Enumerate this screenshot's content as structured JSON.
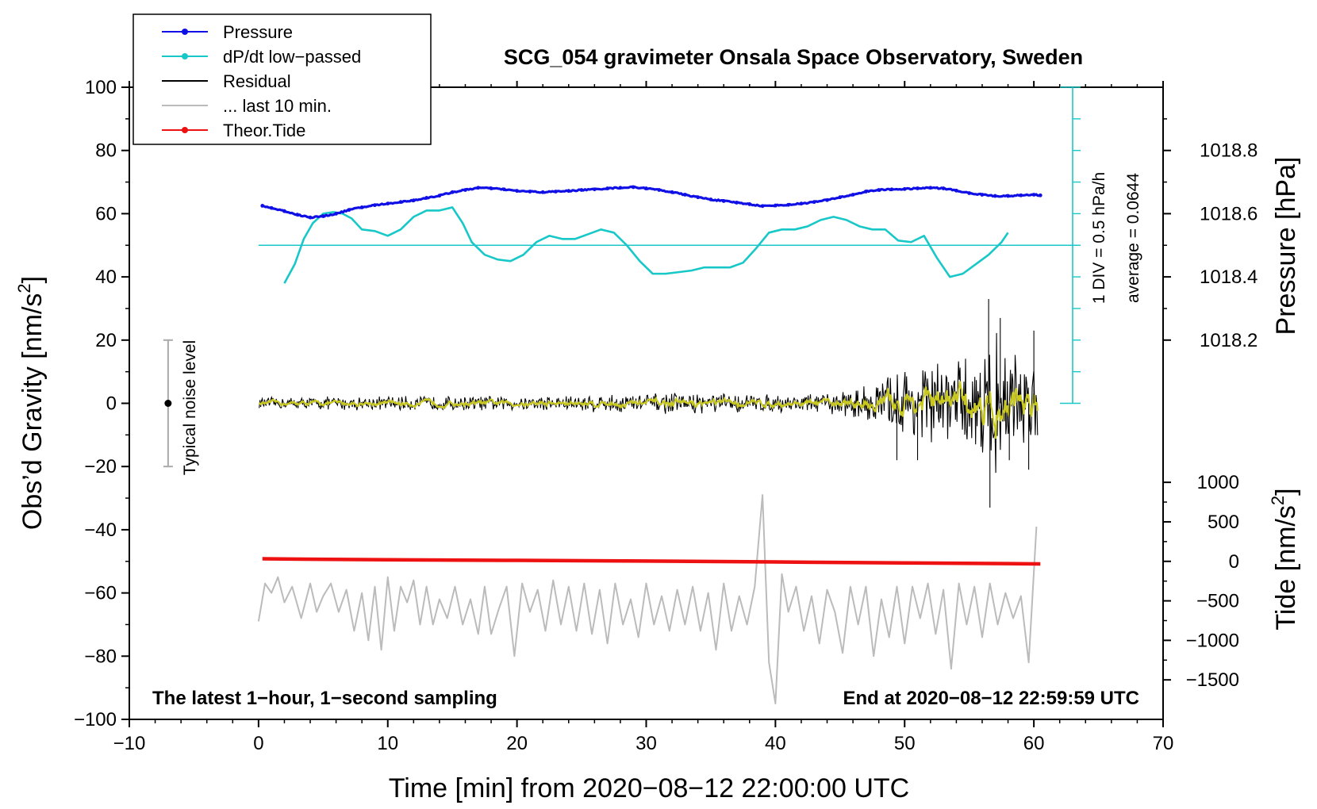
{
  "chart_data": {
    "type": "line",
    "title": "SCG_054 gravimeter Onsala Space Observatory, Sweden",
    "xlabel": "Time [min] from 2020−08−12 22:00:00 UTC",
    "ylabel_main": "Obs’d Gravity [nm/s",
    "ylabel_sup": "2",
    "ylabel_close": "]",
    "ylabel_pressure": "Pressure [hPa]",
    "ylabel_tide": "Tide [nm/s",
    "ylabel_tide_sup": "2",
    "ylabel_tide_close": "]",
    "xlim": [
      -10,
      70
    ],
    "ylim": [
      -100,
      100
    ],
    "x_ticks": [
      "−10",
      "0",
      "10",
      "20",
      "30",
      "40",
      "50",
      "60",
      "70"
    ],
    "y_ticks": [
      "−100",
      "−80",
      "−60",
      "−40",
      "−20",
      "0",
      "20",
      "40",
      "60",
      "80",
      "100"
    ],
    "pressure_axis": {
      "ticks": [
        1018.2,
        1018.4,
        1018.6,
        1018.8
      ],
      "tick_labels": [
        "1018.2",
        "1018.4",
        "1018.6",
        "1018.8"
      ],
      "y_at_1018_2": 20,
      "hpa_per_20": 0.2
    },
    "tide_axis": {
      "ticks": [
        -1500,
        -1000,
        -500,
        0,
        500,
        1000
      ],
      "tick_labels": [
        "−1500",
        "−1000",
        "−500",
        "0",
        "500",
        "1000"
      ],
      "y_at_tide_0": -50,
      "tide_per_y_unit": 40
    },
    "legend": {
      "position": "top-left",
      "entries": [
        {
          "label": "Pressure",
          "color": "#1010e6",
          "marker": true
        },
        {
          "label": "dP/dt low−passed",
          "color": "#18c8c8",
          "marker": true
        },
        {
          "label": "Residual",
          "color": "#000000",
          "marker": false
        },
        {
          "label": "... last 10 min.",
          "color": "#bbbbbb",
          "marker": false
        },
        {
          "label": "Theor.Tide",
          "color": "#ee1111",
          "marker": true
        }
      ]
    },
    "annotations": {
      "left_bottom": "The latest 1−hour, 1−second sampling",
      "right_bottom": "End at 2020−08−12 22:59:59 UTC",
      "noise_label": "Typical noise level",
      "div_label": "1 DIV = 0.5 hPa/h",
      "average_label": "average = 0.0644"
    },
    "noise_bar": {
      "x": -7,
      "center": 0,
      "low": -20,
      "high": 20
    },
    "dpdt_scale_bar": {
      "x": 63,
      "y_low": 0,
      "y_high": 100,
      "divisions": 10,
      "baseline_y": 50
    },
    "series": [
      {
        "name": "Pressure",
        "unit": "hPa",
        "color": "#1010e6",
        "points": [
          [
            0.3,
            1018.625
          ],
          [
            1,
            1018.618
          ],
          [
            2,
            1018.608
          ],
          [
            3,
            1018.597
          ],
          [
            4,
            1018.588
          ],
          [
            5,
            1018.592
          ],
          [
            6,
            1018.6
          ],
          [
            7,
            1018.612
          ],
          [
            8,
            1018.62
          ],
          [
            9,
            1018.627
          ],
          [
            10,
            1018.632
          ],
          [
            11,
            1018.637
          ],
          [
            12,
            1018.642
          ],
          [
            13,
            1018.65
          ],
          [
            14,
            1018.657
          ],
          [
            15,
            1018.668
          ],
          [
            16,
            1018.675
          ],
          [
            17,
            1018.682
          ],
          [
            18,
            1018.68
          ],
          [
            19,
            1018.677
          ],
          [
            20,
            1018.672
          ],
          [
            21,
            1018.67
          ],
          [
            22,
            1018.668
          ],
          [
            23,
            1018.67
          ],
          [
            24,
            1018.672
          ],
          [
            25,
            1018.675
          ],
          [
            26,
            1018.677
          ],
          [
            27,
            1018.68
          ],
          [
            28,
            1018.682
          ],
          [
            29,
            1018.684
          ],
          [
            30,
            1018.68
          ],
          [
            31,
            1018.675
          ],
          [
            32,
            1018.668
          ],
          [
            33,
            1018.66
          ],
          [
            34,
            1018.652
          ],
          [
            35,
            1018.645
          ],
          [
            36,
            1018.64
          ],
          [
            37,
            1018.635
          ],
          [
            38,
            1018.63
          ],
          [
            39,
            1018.624
          ],
          [
            40,
            1018.626
          ],
          [
            41,
            1018.628
          ],
          [
            42,
            1018.632
          ],
          [
            43,
            1018.637
          ],
          [
            44,
            1018.643
          ],
          [
            45,
            1018.652
          ],
          [
            46,
            1018.66
          ],
          [
            47,
            1018.67
          ],
          [
            48,
            1018.675
          ],
          [
            49,
            1018.677
          ],
          [
            50,
            1018.678
          ],
          [
            51,
            1018.68
          ],
          [
            52,
            1018.682
          ],
          [
            53,
            1018.68
          ],
          [
            54,
            1018.673
          ],
          [
            55,
            1018.665
          ],
          [
            56,
            1018.66
          ],
          [
            57,
            1018.656
          ],
          [
            58,
            1018.656
          ],
          [
            59,
            1018.658
          ],
          [
            60,
            1018.66
          ],
          [
            60.5,
            1018.658
          ]
        ]
      },
      {
        "name": "dP/dt low−passed",
        "unit": "nm/s2 axis (scaled)",
        "color": "#18c8c8",
        "points": [
          [
            2,
            38
          ],
          [
            2.8,
            44
          ],
          [
            3.5,
            52
          ],
          [
            4.2,
            57
          ],
          [
            5,
            60
          ],
          [
            5.8,
            60.5
          ],
          [
            6.5,
            60
          ],
          [
            7.2,
            58.5
          ],
          [
            8,
            55
          ],
          [
            9,
            54.5
          ],
          [
            10,
            53
          ],
          [
            11,
            55
          ],
          [
            12,
            59
          ],
          [
            13,
            61
          ],
          [
            14,
            61
          ],
          [
            15,
            62
          ],
          [
            15.8,
            57
          ],
          [
            16.5,
            51
          ],
          [
            17.5,
            47
          ],
          [
            18.5,
            45.5
          ],
          [
            19.5,
            45
          ],
          [
            20.5,
            47
          ],
          [
            21.5,
            51
          ],
          [
            22.5,
            53
          ],
          [
            23.5,
            52
          ],
          [
            24.5,
            52
          ],
          [
            25.5,
            53.5
          ],
          [
            26.5,
            55
          ],
          [
            27.5,
            54
          ],
          [
            28.5,
            50
          ],
          [
            29.5,
            45
          ],
          [
            30.5,
            41
          ],
          [
            31.5,
            41
          ],
          [
            32.5,
            41.5
          ],
          [
            33.5,
            42
          ],
          [
            34.5,
            43
          ],
          [
            35.5,
            43
          ],
          [
            36.5,
            43
          ],
          [
            37.5,
            44.5
          ],
          [
            38.5,
            49
          ],
          [
            39.5,
            54
          ],
          [
            40.5,
            55
          ],
          [
            41.5,
            55
          ],
          [
            42.5,
            56
          ],
          [
            43.5,
            58
          ],
          [
            44.5,
            59
          ],
          [
            45.5,
            58
          ],
          [
            46.5,
            56
          ],
          [
            47.5,
            55
          ],
          [
            48.5,
            55
          ],
          [
            49.5,
            51.5
          ],
          [
            50.5,
            51
          ],
          [
            51.5,
            53
          ],
          [
            52.5,
            46
          ],
          [
            53.5,
            40
          ],
          [
            54.5,
            41
          ],
          [
            55.5,
            44
          ],
          [
            56.5,
            47
          ],
          [
            57.5,
            51
          ],
          [
            58,
            54
          ]
        ]
      },
      {
        "name": "Residual",
        "unit": "nm/s2",
        "color": "#000000",
        "smoothed_color": "#c8c81e",
        "envelope": [
          [
            0,
            2
          ],
          [
            10,
            2.5
          ],
          [
            20,
            2.5
          ],
          [
            25,
            3
          ],
          [
            30,
            3.5
          ],
          [
            35,
            3.5
          ],
          [
            40,
            3
          ],
          [
            44,
            3.5
          ],
          [
            46,
            5
          ],
          [
            48,
            8
          ],
          [
            50,
            13
          ],
          [
            52,
            15
          ],
          [
            54,
            14
          ],
          [
            55,
            16
          ],
          [
            56,
            20
          ],
          [
            57,
            24
          ],
          [
            58,
            18
          ],
          [
            60,
            16
          ],
          [
            60.3,
            14
          ]
        ]
      },
      {
        "name": "... last 10 min.",
        "unit": "nm/s2",
        "color": "#bbbbbb",
        "baseline": -62,
        "points": [
          [
            0,
            -69
          ],
          [
            0.5,
            -57
          ],
          [
            1,
            -60
          ],
          [
            1.5,
            -55
          ],
          [
            2,
            -63
          ],
          [
            2.6,
            -58
          ],
          [
            3.3,
            -68
          ],
          [
            4,
            -57
          ],
          [
            4.5,
            -66
          ],
          [
            5,
            -61
          ],
          [
            5.6,
            -57
          ],
          [
            6.2,
            -66
          ],
          [
            6.8,
            -59
          ],
          [
            7.4,
            -72
          ],
          [
            8,
            -60
          ],
          [
            8.5,
            -75
          ],
          [
            9,
            -58
          ],
          [
            9.5,
            -78
          ],
          [
            10,
            -55
          ],
          [
            10.5,
            -72
          ],
          [
            11,
            -58
          ],
          [
            11.5,
            -63
          ],
          [
            12,
            -56
          ],
          [
            12.5,
            -70
          ],
          [
            13,
            -58
          ],
          [
            13.5,
            -70
          ],
          [
            14,
            -62
          ],
          [
            14.6,
            -68
          ],
          [
            15.2,
            -58
          ],
          [
            15.8,
            -70
          ],
          [
            16.4,
            -62
          ],
          [
            17,
            -73
          ],
          [
            17.5,
            -58
          ],
          [
            18,
            -73
          ],
          [
            18.6,
            -65
          ],
          [
            19.2,
            -58
          ],
          [
            19.8,
            -80
          ],
          [
            20.4,
            -57
          ],
          [
            21,
            -66
          ],
          [
            21.6,
            -59
          ],
          [
            22.2,
            -72
          ],
          [
            22.8,
            -56
          ],
          [
            23.4,
            -70
          ],
          [
            24,
            -58
          ],
          [
            24.6,
            -72
          ],
          [
            25.2,
            -57
          ],
          [
            25.8,
            -73
          ],
          [
            26.4,
            -59
          ],
          [
            27,
            -76
          ],
          [
            27.6,
            -57
          ],
          [
            28.2,
            -70
          ],
          [
            28.8,
            -62
          ],
          [
            29.4,
            -74
          ],
          [
            30,
            -57
          ],
          [
            30.6,
            -70
          ],
          [
            31.2,
            -61
          ],
          [
            31.8,
            -72
          ],
          [
            32.4,
            -59
          ],
          [
            33,
            -70
          ],
          [
            33.6,
            -58
          ],
          [
            34.2,
            -72
          ],
          [
            34.8,
            -60
          ],
          [
            35.4,
            -78
          ],
          [
            36,
            -57
          ],
          [
            36.6,
            -72
          ],
          [
            37.2,
            -61
          ],
          [
            37.8,
            -70
          ],
          [
            38.4,
            -58
          ],
          [
            39,
            -29
          ],
          [
            39.5,
            -82
          ],
          [
            40,
            -95
          ],
          [
            40.5,
            -54
          ],
          [
            41,
            -66
          ],
          [
            41.6,
            -58
          ],
          [
            42.2,
            -72
          ],
          [
            42.8,
            -61
          ],
          [
            43.4,
            -76
          ],
          [
            44,
            -59
          ],
          [
            44.6,
            -66
          ],
          [
            45.2,
            -79
          ],
          [
            45.8,
            -58
          ],
          [
            46.4,
            -70
          ],
          [
            47,
            -58
          ],
          [
            47.6,
            -80
          ],
          [
            48.2,
            -62
          ],
          [
            48.8,
            -74
          ],
          [
            49.4,
            -58
          ],
          [
            50,
            -76
          ],
          [
            50.6,
            -58
          ],
          [
            51.2,
            -68
          ],
          [
            51.8,
            -57
          ],
          [
            52.4,
            -73
          ],
          [
            53,
            -59
          ],
          [
            53.6,
            -84
          ],
          [
            54.2,
            -57
          ],
          [
            54.8,
            -70
          ],
          [
            55.4,
            -58
          ],
          [
            56,
            -74
          ],
          [
            56.6,
            -57
          ],
          [
            57.2,
            -70
          ],
          [
            57.8,
            -60
          ],
          [
            58.4,
            -68
          ],
          [
            59,
            -61
          ],
          [
            59.6,
            -82
          ],
          [
            60.2,
            -39
          ]
        ]
      },
      {
        "name": "Theor.Tide",
        "unit": "nm/s2",
        "color": "#ee1111",
        "points": [
          [
            0.3,
            -49.2
          ],
          [
            10,
            -49.5
          ],
          [
            20,
            -49.7
          ],
          [
            30,
            -49.9
          ],
          [
            40,
            -50.2
          ],
          [
            50,
            -50.5
          ],
          [
            60.5,
            -50.8
          ]
        ]
      }
    ]
  }
}
